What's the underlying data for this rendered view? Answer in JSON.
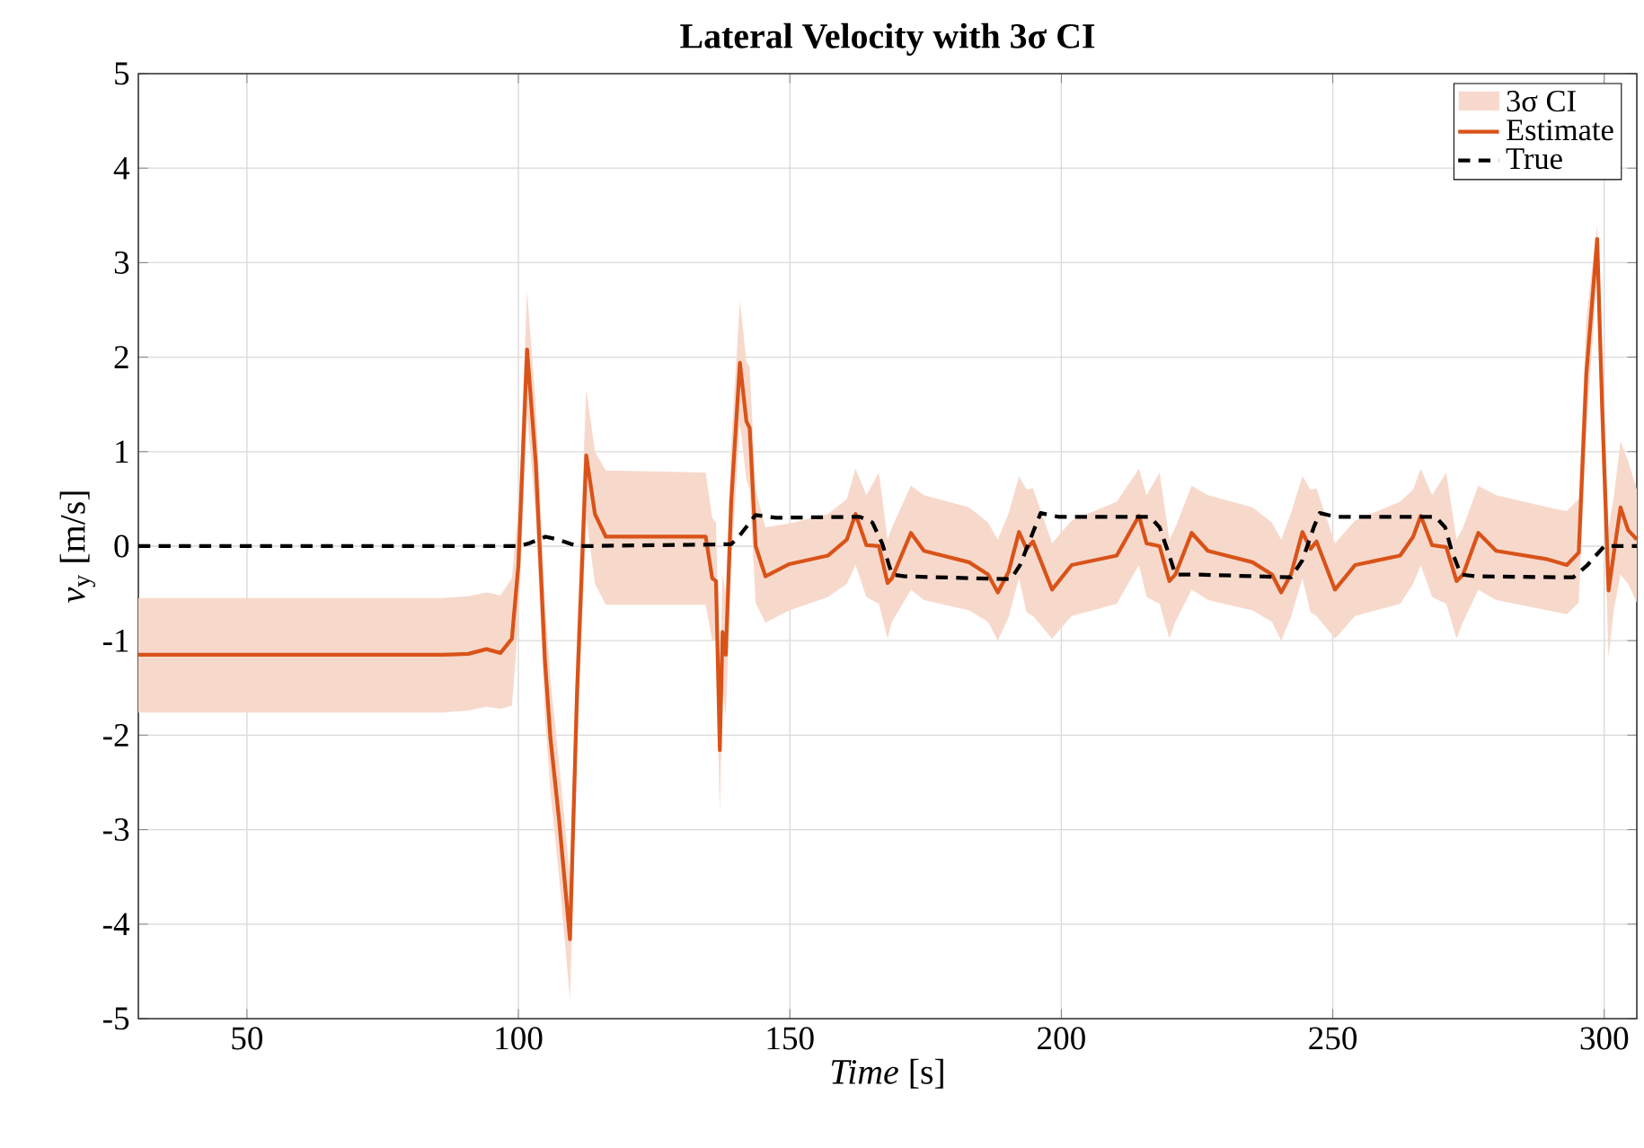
{
  "chart_data": {
    "type": "line",
    "title": "**Lateral Velocity with 3σ CI**",
    "xlabel": "*Time* [s]",
    "ylabel": "*v*$_{y}$ [m/s]",
    "xlim": [
      30,
      306
    ],
    "ylim": [
      -5,
      5
    ],
    "xticks": [
      50,
      100,
      150,
      200,
      250,
      300
    ],
    "yticks": [
      -5,
      -4,
      -3,
      -2,
      -1,
      0,
      1,
      2,
      3,
      4,
      5
    ],
    "grid": true,
    "legend": "top right",
    "marker": "none",
    "annotations": [
      "3σ CI"
    ],
    "series": [
      {
        "name": "Estimate",
        "color": "#d95319",
        "line_style": "solid",
        "x": [
          30,
          60,
          86,
          90.8,
          94.1,
          96.7,
          98.8,
          100,
          101.6,
          103.2,
          104.9,
          105.9,
          107.5,
          109.5,
          110.8,
          112.5,
          114.1,
          116.1,
          134.5,
          135.7,
          136.4,
          137.1,
          137.6,
          138.2,
          139.2,
          140.8,
          142,
          142.6,
          143.7,
          145.5,
          149.9,
          157,
          160.5,
          162.1,
          164.1,
          166.4,
          168,
          168.8,
          172.3,
          174.7,
          183,
          186.5,
          188.3,
          190.3,
          192.2,
          193.6,
          194.8,
          198.3,
          201.9,
          210.2,
          214.3,
          215.7,
          218.1,
          219.9,
          221,
          224,
          227,
          235.2,
          238.8,
          240.5,
          242.3,
          244.4,
          245.9,
          247,
          250.4,
          254.1,
          262.4,
          264.8,
          266.2,
          268.3,
          270.9,
          272.8,
          274,
          276.8,
          280.1,
          289.6,
          293.1,
          295.3,
          296.7,
          298.7,
          299.6,
          300.8,
          301.7,
          303,
          304.4,
          306
        ],
        "values": [
          -1.15,
          -1.15,
          -1.15,
          -1.14,
          -1.09,
          -1.13,
          -0.98,
          -0.2,
          2.08,
          0.88,
          -1.22,
          -2.03,
          -2.9,
          -4.16,
          -1.55,
          0.96,
          0.34,
          0.1,
          0.1,
          -0.34,
          -0.37,
          -2.16,
          -0.91,
          -1.15,
          0.47,
          1.94,
          1.32,
          1.25,
          0,
          -0.32,
          -0.19,
          -0.1,
          0.07,
          0.34,
          0.01,
          0,
          -0.39,
          -0.34,
          0.14,
          -0.05,
          -0.17,
          -0.3,
          -0.49,
          -0.27,
          0.15,
          -0.03,
          0.05,
          -0.46,
          -0.2,
          -0.1,
          0.32,
          0.03,
          0,
          -0.37,
          -0.3,
          0.14,
          -0.05,
          -0.17,
          -0.3,
          -0.49,
          -0.3,
          0.15,
          -0.03,
          0.05,
          -0.46,
          -0.2,
          -0.1,
          0.1,
          0.32,
          0.01,
          -0.01,
          -0.37,
          -0.3,
          0.14,
          -0.05,
          -0.14,
          -0.2,
          -0.07,
          1.82,
          3.25,
          1.49,
          -0.47,
          -0.1,
          0.41,
          0.17,
          0.07
        ],
        "lower": [
          -1.76,
          -1.76,
          -1.76,
          -1.74,
          -1.7,
          -1.72,
          -1.69,
          -0.8,
          1.4,
          0.3,
          -1.8,
          -2.6,
          -3.5,
          -4.8,
          -2.2,
          0.3,
          -0.4,
          -0.62,
          -0.62,
          -1.0,
          -1.0,
          -2.84,
          -1.5,
          -1.8,
          -0.2,
          1.3,
          0.7,
          0.6,
          -0.6,
          -0.81,
          -0.68,
          -0.54,
          -0.4,
          -0.2,
          -0.54,
          -0.61,
          -0.98,
          -0.8,
          -0.46,
          -0.57,
          -0.68,
          -0.8,
          -1.0,
          -0.75,
          -0.34,
          -0.7,
          -0.74,
          -0.98,
          -0.74,
          -0.61,
          -0.2,
          -0.54,
          -0.61,
          -0.98,
          -0.8,
          -0.46,
          -0.57,
          -0.68,
          -0.8,
          -1.0,
          -0.75,
          -0.34,
          -0.7,
          -0.74,
          -0.98,
          -0.74,
          -0.61,
          -0.4,
          -0.2,
          -0.54,
          -0.61,
          -0.98,
          -0.8,
          -0.46,
          -0.57,
          -0.68,
          -0.72,
          -0.6,
          1.2,
          2.9,
          0.9,
          -1.18,
          -0.7,
          -0.3,
          -0.4,
          -0.6
        ],
        "upper": [
          -0.55,
          -0.55,
          -0.55,
          -0.53,
          -0.49,
          -0.52,
          -0.34,
          0.4,
          2.7,
          1.5,
          -0.6,
          -1.4,
          -2.3,
          -3.5,
          -0.9,
          1.66,
          1.0,
          0.8,
          0.78,
          0.3,
          0.25,
          -1.5,
          -0.3,
          -0.5,
          1.1,
          2.6,
          1.95,
          1.9,
          0.6,
          0.2,
          0.24,
          0.34,
          0.5,
          0.82,
          0.54,
          0.78,
          0.07,
          0.2,
          0.64,
          0.54,
          0.41,
          0.25,
          0.07,
          0.35,
          0.74,
          0.6,
          0.61,
          0.03,
          0.27,
          0.47,
          0.82,
          0.54,
          0.78,
          0.07,
          0.2,
          0.64,
          0.54,
          0.41,
          0.25,
          0.07,
          0.35,
          0.74,
          0.6,
          0.61,
          0.03,
          0.27,
          0.47,
          0.6,
          0.82,
          0.54,
          0.78,
          0.07,
          0.2,
          0.64,
          0.54,
          0.41,
          0.37,
          0.5,
          2.4,
          3.4,
          2.1,
          0.2,
          0.5,
          1.11,
          0.9,
          0.6
        ]
      },
      {
        "name": "True",
        "color": "#000000",
        "line_style": "dashed",
        "x": [
          30,
          100,
          102,
          105,
          107.3,
          110.8,
          139.2,
          141,
          143.7,
          147.5,
          162.9,
          165.2,
          167,
          168.8,
          171.2,
          190.7,
          192.4,
          194.8,
          196.2,
          199.5,
          216.3,
          218.1,
          219.9,
          221,
          224.6,
          242.3,
          244.4,
          246.5,
          247.6,
          250.6,
          268.9,
          270.7,
          271.9,
          273.6,
          276.6,
          294.3,
          296.9,
          300,
          306
        ],
        "values": [
          0,
          0,
          0.03,
          0.1,
          0.07,
          0,
          0.02,
          0.13,
          0.33,
          0.3,
          0.31,
          0.25,
          0.03,
          -0.3,
          -0.32,
          -0.35,
          -0.2,
          0.15,
          0.35,
          0.31,
          0.31,
          0.2,
          -0.1,
          -0.3,
          -0.3,
          -0.33,
          -0.15,
          0.2,
          0.35,
          0.31,
          0.31,
          0.2,
          -0.05,
          -0.3,
          -0.32,
          -0.33,
          -0.2,
          0,
          0
        ]
      }
    ]
  }
}
